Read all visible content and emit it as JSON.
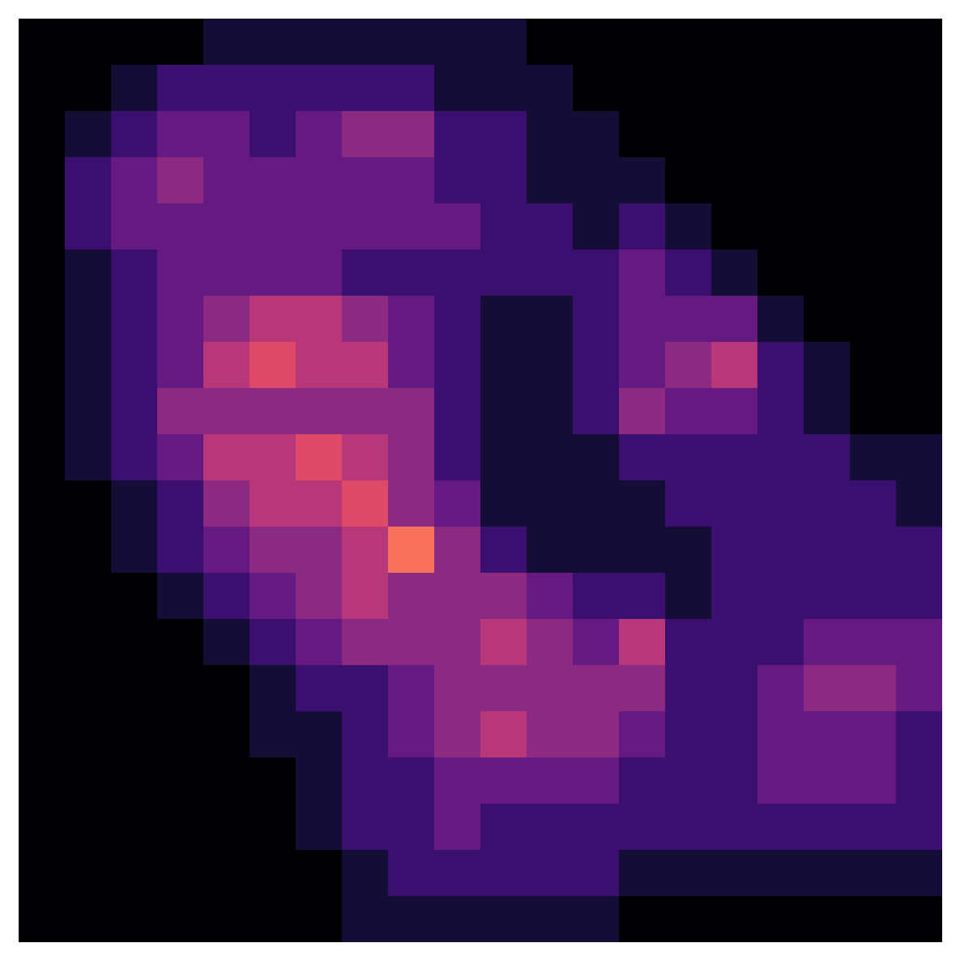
{
  "chart_data": {
    "type": "heatmap",
    "color": "magma",
    "tick_labels": false,
    "value_range": [
      0,
      10
    ],
    "values": [
      [
        0,
        0,
        0,
        0,
        1,
        1,
        1,
        1,
        1,
        1,
        1,
        0,
        0,
        0,
        0,
        0,
        0,
        0,
        0,
        0
      ],
      [
        0,
        0,
        1,
        2,
        2,
        2,
        2,
        2,
        2,
        1,
        1,
        1,
        0,
        0,
        0,
        0,
        0,
        0,
        0,
        0
      ],
      [
        0,
        1,
        2,
        3,
        3,
        2,
        3,
        4,
        4,
        2,
        2,
        1,
        1,
        0,
        0,
        0,
        0,
        0,
        0,
        0
      ],
      [
        0,
        2,
        3,
        4,
        3,
        3,
        3,
        3,
        3,
        2,
        2,
        1,
        1,
        1,
        0,
        0,
        0,
        0,
        0,
        0
      ],
      [
        0,
        2,
        3,
        3,
        3,
        3,
        3,
        3,
        3,
        3,
        2,
        2,
        1,
        2,
        1,
        0,
        0,
        0,
        0,
        0
      ],
      [
        0,
        1,
        2,
        3,
        3,
        3,
        3,
        2,
        2,
        2,
        2,
        2,
        2,
        3,
        2,
        1,
        0,
        0,
        0,
        0
      ],
      [
        0,
        1,
        2,
        3,
        4,
        5,
        5,
        4,
        3,
        2,
        1,
        1,
        2,
        3,
        3,
        3,
        1,
        0,
        0,
        0
      ],
      [
        0,
        1,
        2,
        3,
        5,
        6,
        5,
        5,
        3,
        2,
        1,
        1,
        2,
        3,
        4,
        5,
        2,
        1,
        0,
        0
      ],
      [
        0,
        1,
        2,
        4,
        4,
        4,
        4,
        4,
        4,
        2,
        1,
        1,
        2,
        4,
        3,
        3,
        2,
        1,
        0,
        0
      ],
      [
        0,
        1,
        2,
        3,
        5,
        5,
        6,
        5,
        4,
        2,
        1,
        1,
        1,
        2,
        2,
        2,
        2,
        2,
        1,
        1
      ],
      [
        0,
        0,
        1,
        2,
        4,
        5,
        5,
        6,
        4,
        3,
        1,
        1,
        1,
        1,
        2,
        2,
        2,
        2,
        2,
        1
      ],
      [
        0,
        0,
        1,
        2,
        3,
        4,
        4,
        5,
        7,
        4,
        2,
        1,
        1,
        1,
        1,
        2,
        2,
        2,
        2,
        2
      ],
      [
        0,
        0,
        0,
        1,
        2,
        3,
        4,
        5,
        4,
        4,
        4,
        3,
        2,
        2,
        1,
        2,
        2,
        2,
        2,
        2
      ],
      [
        0,
        0,
        0,
        0,
        1,
        2,
        3,
        4,
        4,
        4,
        5,
        4,
        3,
        5,
        2,
        2,
        2,
        3,
        3,
        3
      ],
      [
        0,
        0,
        0,
        0,
        0,
        1,
        2,
        2,
        3,
        4,
        4,
        4,
        4,
        4,
        2,
        2,
        3,
        4,
        4,
        3
      ],
      [
        0,
        0,
        0,
        0,
        0,
        1,
        1,
        2,
        3,
        4,
        5,
        4,
        4,
        3,
        2,
        2,
        3,
        3,
        3,
        2
      ],
      [
        0,
        0,
        0,
        0,
        0,
        0,
        1,
        2,
        2,
        3,
        3,
        3,
        3,
        2,
        2,
        2,
        3,
        3,
        3,
        2
      ],
      [
        0,
        0,
        0,
        0,
        0,
        0,
        1,
        2,
        2,
        3,
        2,
        2,
        2,
        2,
        2,
        2,
        2,
        2,
        2,
        2
      ],
      [
        0,
        0,
        0,
        0,
        0,
        0,
        0,
        1,
        2,
        2,
        2,
        2,
        2,
        1,
        1,
        1,
        1,
        1,
        1,
        1
      ],
      [
        0,
        0,
        0,
        0,
        0,
        0,
        0,
        1,
        1,
        1,
        1,
        1,
        1,
        0,
        0,
        0,
        0,
        0,
        0,
        0
      ]
    ]
  }
}
